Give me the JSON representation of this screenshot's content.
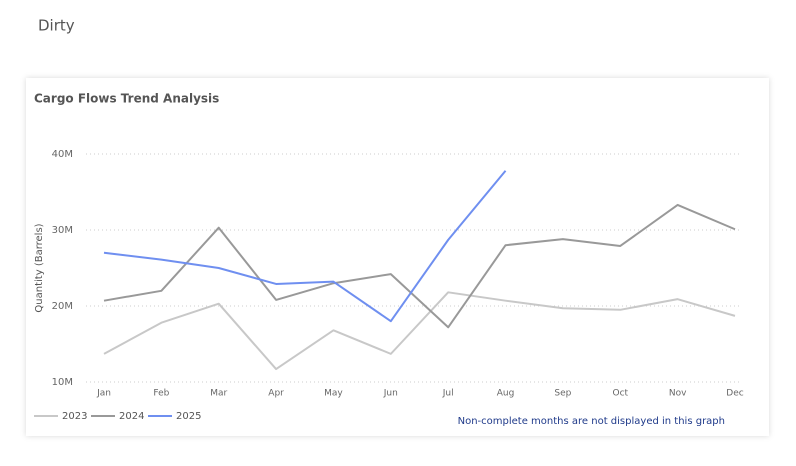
{
  "page_title": "Dirty",
  "chart_data": {
    "type": "line",
    "title": "Cargo Flows Trend Analysis",
    "y_label": "Quantity (Barrels)",
    "note": "Non-complete months are not displayed in this graph",
    "categories": [
      "Jan",
      "Feb",
      "Mar",
      "Apr",
      "May",
      "Jun",
      "Jul",
      "Aug",
      "Sep",
      "Oct",
      "Nov",
      "Dec"
    ],
    "series": [
      {
        "name": "2023",
        "color": "#c8c8c8",
        "values": [
          13700000,
          17800000,
          20300000,
          11700000,
          16800000,
          13700000,
          21800000,
          20700000,
          19700000,
          19500000,
          20900000,
          18700000
        ]
      },
      {
        "name": "2024",
        "color": "#999999",
        "values": [
          20700000,
          22000000,
          30300000,
          20800000,
          23000000,
          24200000,
          17200000,
          28000000,
          28800000,
          27900000,
          33300000,
          30100000
        ]
      },
      {
        "name": "2025",
        "color": "#6f8ff0",
        "values": [
          27000000,
          26100000,
          25000000,
          22900000,
          23200000,
          18000000,
          28700000,
          37800000,
          null,
          null,
          null,
          null
        ]
      }
    ],
    "ylim": [
      10000000,
      40000000
    ],
    "yticks": [
      {
        "value": 10000000,
        "label": "10M"
      },
      {
        "value": 20000000,
        "label": "20M"
      },
      {
        "value": 30000000,
        "label": "30M"
      },
      {
        "value": 40000000,
        "label": "40M"
      }
    ],
    "grid": true,
    "legend": "bottom-left"
  }
}
